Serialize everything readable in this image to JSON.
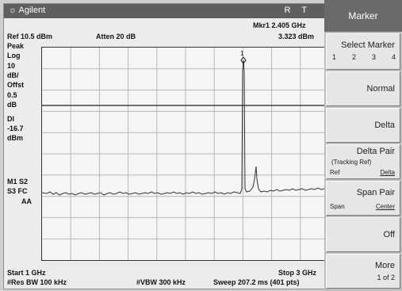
{
  "title_bar": {
    "brand": "Agilent",
    "r": "R",
    "t": "T"
  },
  "header": {
    "marker_readout": "Mkr1  2.405 GHz",
    "ref": "Ref 10.5 dBm",
    "atten": "Atten 20 dB",
    "marker_amplitude": "3.323 dBm"
  },
  "left_labels": {
    "peak": "Peak",
    "log": "Log",
    "scale_value": "10",
    "scale_unit": "dB/",
    "offst": "Offst",
    "offst_value": "0.5",
    "offst_unit": "dB",
    "dl": "Dl",
    "dl_value": "-16.7",
    "dl_unit": "dBm",
    "m1s2": "M1  S2",
    "s3fc": "S3  FC",
    "aa": "AA"
  },
  "footer": {
    "start": "Start 1 GHz",
    "stop": "Stop 3 GHz",
    "rbw": "#Res BW 100 kHz",
    "vbw": "#VBW 300 kHz",
    "sweep": "Sweep 207.2 ms (401 pts)"
  },
  "marker_label": "1",
  "softkeys": {
    "title": "Marker",
    "select_marker": {
      "label": "Select Marker",
      "options": [
        "1",
        "2",
        "3",
        "4"
      ]
    },
    "normal": "Normal",
    "delta": "Delta",
    "delta_pair": {
      "label": "Delta Pair",
      "sub": "(Tracking Ref)",
      "left": "Ref",
      "right": "Delta"
    },
    "span_pair": {
      "label": "Span Pair",
      "left": "Span",
      "right": "Center"
    },
    "off": "Off",
    "more": {
      "label": "More",
      "sub": "1 of 2"
    }
  }
}
